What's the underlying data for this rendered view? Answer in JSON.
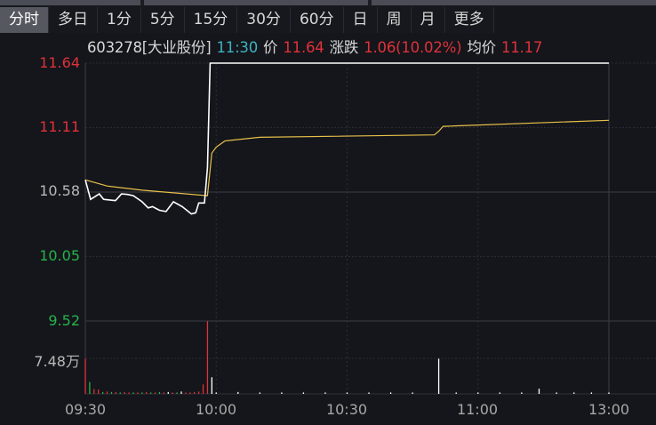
{
  "tabs": [
    "分时",
    "多日",
    "1分",
    "5分",
    "15分",
    "30分",
    "60分",
    "日",
    "周",
    "月",
    "更多"
  ],
  "active_tab": "分时",
  "info": {
    "code_name": "603278[大业股份]",
    "time": "11:30",
    "price_label": "价",
    "price": "11.64",
    "change_label": "涨跌",
    "change": "1.06(10.02%)",
    "avg_label": "均价",
    "avg": "11.17"
  },
  "colors": {
    "up": "#e0313a",
    "down": "#27b24a",
    "price_line": "#ffffff",
    "avg_line": "#e8c14a",
    "background": "#14161b",
    "cyan": "#3fb3c0"
  },
  "chart_data": {
    "type": "line",
    "y_ticks": [
      "11.64",
      "11.11",
      "10.58",
      "10.05",
      "9.52"
    ],
    "y_tick_colors": [
      "up",
      "up",
      "neutral",
      "down",
      "down"
    ],
    "ylim": [
      9.52,
      11.64
    ],
    "prev_close": 10.58,
    "x_ticks": [
      "09:30",
      "10:00",
      "10:30",
      "11:00",
      "13:00"
    ],
    "x_minutes_range": [
      0,
      120
    ],
    "price": [
      [
        0,
        10.68
      ],
      [
        1.2,
        10.52
      ],
      [
        3.2,
        10.565
      ],
      [
        4.2,
        10.52
      ],
      [
        6.9,
        10.51
      ],
      [
        8.3,
        10.565
      ],
      [
        9.7,
        10.56
      ],
      [
        11,
        10.55
      ],
      [
        13,
        10.5
      ],
      [
        14.4,
        10.45
      ],
      [
        15.4,
        10.46
      ],
      [
        17,
        10.43
      ],
      [
        18.5,
        10.42
      ],
      [
        20.2,
        10.5
      ],
      [
        22.2,
        10.46
      ],
      [
        24.3,
        10.4
      ],
      [
        25.3,
        10.41
      ],
      [
        26,
        10.49
      ],
      [
        27.3,
        10.49
      ],
      [
        28,
        10.78
      ],
      [
        28.6,
        11.64
      ],
      [
        120,
        11.64
      ]
    ],
    "avg": [
      [
        0,
        10.68
      ],
      [
        5,
        10.63
      ],
      [
        13,
        10.595
      ],
      [
        28,
        10.55
      ],
      [
        29,
        10.9
      ],
      [
        30,
        10.95
      ],
      [
        32,
        11.0
      ],
      [
        40,
        11.03
      ],
      [
        80,
        11.05
      ],
      [
        81,
        11.08
      ],
      [
        82,
        11.12
      ],
      [
        120,
        11.17
      ]
    ],
    "volume_label": "7.48万",
    "volume_ref": 7.48,
    "volume_unit": "万",
    "volume": [
      [
        0,
        7.4,
        "up"
      ],
      [
        1,
        2.5,
        "down"
      ],
      [
        2,
        1.0,
        "up"
      ],
      [
        3,
        0.9,
        "up"
      ],
      [
        4,
        0.4,
        "down"
      ],
      [
        5,
        0.5,
        "up"
      ],
      [
        6,
        0.4,
        "down"
      ],
      [
        7,
        0.4,
        "up"
      ],
      [
        8,
        0.3,
        "down"
      ],
      [
        9,
        0.4,
        "up"
      ],
      [
        10,
        0.3,
        "up"
      ],
      [
        11,
        0.3,
        "down"
      ],
      [
        12,
        0.3,
        "up"
      ],
      [
        13,
        0.3,
        "down"
      ],
      [
        14,
        0.4,
        "up"
      ],
      [
        15,
        0.3,
        "down"
      ],
      [
        16,
        0.3,
        "up"
      ],
      [
        17,
        0.4,
        "down"
      ],
      [
        18,
        0.3,
        "up"
      ],
      [
        19,
        0.4,
        "flat"
      ],
      [
        20,
        0.3,
        "up"
      ],
      [
        21,
        0.3,
        "down"
      ],
      [
        22,
        0.5,
        "flat"
      ],
      [
        23,
        0.3,
        "up"
      ],
      [
        24,
        0.3,
        "up"
      ],
      [
        25,
        0.4,
        "up"
      ],
      [
        26,
        0.5,
        "up"
      ],
      [
        27,
        2.0,
        "up"
      ],
      [
        28,
        15.3,
        "up"
      ],
      [
        29,
        3.5,
        "flat"
      ],
      [
        30,
        0.3,
        "flat"
      ],
      [
        35,
        0.4,
        "flat"
      ],
      [
        40,
        0.3,
        "flat"
      ],
      [
        45,
        0.3,
        "flat"
      ],
      [
        50,
        0.3,
        "flat"
      ],
      [
        55,
        0.3,
        "flat"
      ],
      [
        60,
        0.3,
        "flat"
      ],
      [
        65,
        0.3,
        "flat"
      ],
      [
        70,
        0.3,
        "flat"
      ],
      [
        75,
        0.3,
        "flat"
      ],
      [
        81,
        7.4,
        "flat"
      ],
      [
        85,
        0.3,
        "flat"
      ],
      [
        90,
        0.3,
        "flat"
      ],
      [
        95,
        0.3,
        "flat"
      ],
      [
        100,
        0.3,
        "flat"
      ],
      [
        104,
        1.1,
        "flat"
      ],
      [
        108,
        0.3,
        "flat"
      ],
      [
        112,
        0.3,
        "flat"
      ],
      [
        116,
        0.3,
        "flat"
      ],
      [
        120,
        0.3,
        "flat"
      ]
    ]
  }
}
